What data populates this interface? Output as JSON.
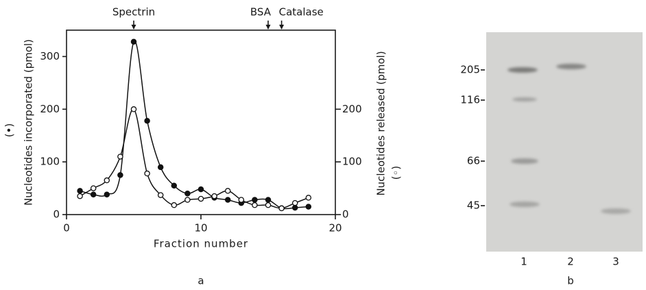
{
  "chart_data": {
    "type": "line",
    "x": [
      1,
      2,
      3,
      4,
      5,
      6,
      7,
      8,
      9,
      10,
      11,
      12,
      13,
      14,
      15,
      16,
      17,
      18
    ],
    "xlim": [
      0,
      20
    ],
    "xticks": [
      0,
      10,
      20
    ],
    "ylim": [
      0,
      350
    ],
    "yticks": [
      0,
      100,
      200,
      300
    ],
    "y2lim": [
      0,
      350
    ],
    "y2ticks": [
      0,
      100,
      200
    ],
    "xlabel": "Fraction number",
    "ylabel": "Nucleotides incorporated (pmol)",
    "ylabel_symbol": "(•)",
    "y2label": "Nucleotides released (pmol)",
    "y2label_symbol": "(◦)",
    "annotations": [
      {
        "text": "Spectrin",
        "x": 5
      },
      {
        "text": "BSA",
        "x": 15
      },
      {
        "text": "Catalase",
        "x": 16
      }
    ],
    "panel_label": "a",
    "series": [
      {
        "color": "#111111",
        "marker": "filled",
        "values": [
          45,
          38,
          38,
          75,
          328,
          178,
          90,
          55,
          40,
          48,
          32,
          28,
          22,
          28,
          28,
          12,
          13,
          15
        ]
      },
      {
        "color": "#111111",
        "marker": "open",
        "axis": "y2",
        "values": [
          35,
          50,
          65,
          110,
          200,
          78,
          37,
          18,
          28,
          30,
          35,
          45,
          28,
          18,
          18,
          12,
          22,
          32
        ]
      }
    ]
  },
  "panel_b": {
    "panel_label": "b",
    "markers": [
      205,
      116,
      66,
      45
    ],
    "lanes": [
      "1",
      "2",
      "3"
    ]
  }
}
